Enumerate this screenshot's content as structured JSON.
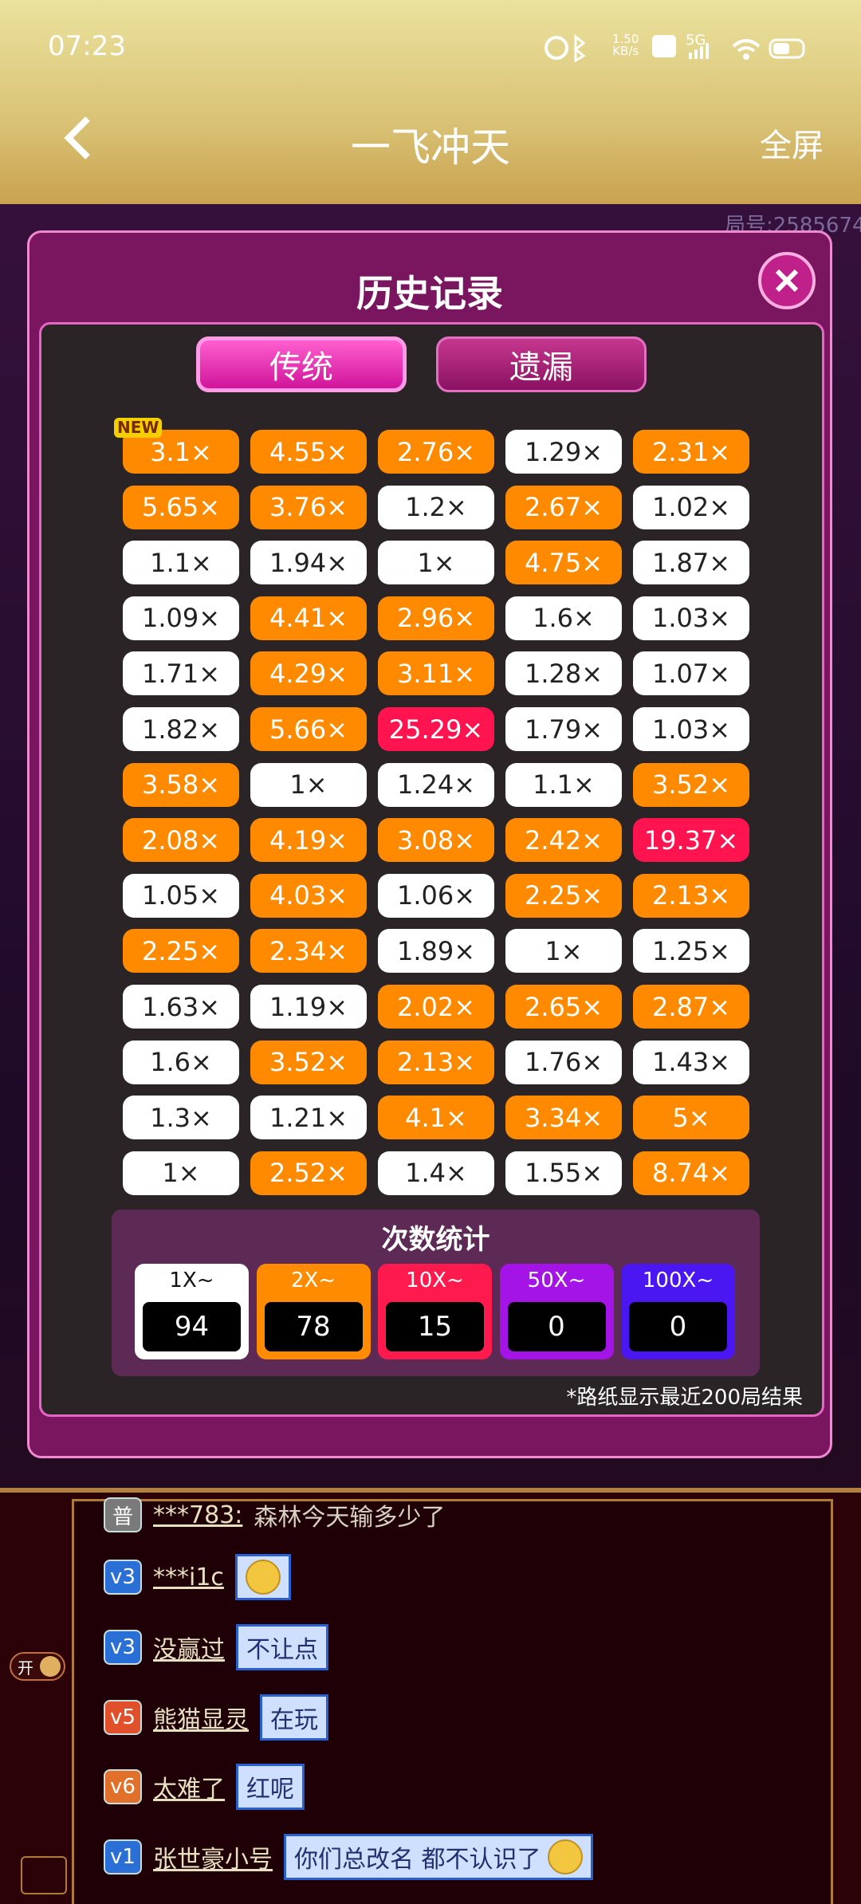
{
  "status_bar": {
    "time": "07:23",
    "speed": "1.50",
    "speed_unit": "KB/s",
    "network": "5G"
  },
  "header": {
    "title": "一飞冲天",
    "action": "全屏"
  },
  "background": {
    "room_id": "局号:2585674"
  },
  "modal": {
    "title": "历史记录",
    "tabs": [
      "传统",
      "遗漏"
    ],
    "new_badge": "NEW",
    "grid": [
      [
        {
          "text": "3.1×",
          "style": "orange"
        },
        {
          "text": "4.55×",
          "style": "orange"
        },
        {
          "text": "2.76×",
          "style": "orange"
        },
        {
          "text": "1.29×",
          "style": "white"
        },
        {
          "text": "2.31×",
          "style": "orange"
        }
      ],
      [
        {
          "text": "5.65×",
          "style": "orange"
        },
        {
          "text": "3.76×",
          "style": "orange"
        },
        {
          "text": "1.2×",
          "style": "white"
        },
        {
          "text": "2.67×",
          "style": "orange"
        },
        {
          "text": "1.02×",
          "style": "white"
        }
      ],
      [
        {
          "text": "1.1×",
          "style": "white"
        },
        {
          "text": "1.94×",
          "style": "white"
        },
        {
          "text": "1×",
          "style": "white"
        },
        {
          "text": "4.75×",
          "style": "orange"
        },
        {
          "text": "1.87×",
          "style": "white"
        }
      ],
      [
        {
          "text": "1.09×",
          "style": "white"
        },
        {
          "text": "4.41×",
          "style": "orange"
        },
        {
          "text": "2.96×",
          "style": "orange"
        },
        {
          "text": "1.6×",
          "style": "white"
        },
        {
          "text": "1.03×",
          "style": "white"
        }
      ],
      [
        {
          "text": "1.71×",
          "style": "white"
        },
        {
          "text": "4.29×",
          "style": "orange"
        },
        {
          "text": "3.11×",
          "style": "orange"
        },
        {
          "text": "1.28×",
          "style": "white"
        },
        {
          "text": "1.07×",
          "style": "white"
        }
      ],
      [
        {
          "text": "1.82×",
          "style": "white"
        },
        {
          "text": "5.66×",
          "style": "orange"
        },
        {
          "text": "25.29×",
          "style": "red"
        },
        {
          "text": "1.79×",
          "style": "white"
        },
        {
          "text": "1.03×",
          "style": "white"
        }
      ],
      [
        {
          "text": "3.58×",
          "style": "orange"
        },
        {
          "text": "1×",
          "style": "white"
        },
        {
          "text": "1.24×",
          "style": "white"
        },
        {
          "text": "1.1×",
          "style": "white"
        },
        {
          "text": "3.52×",
          "style": "orange"
        }
      ],
      [
        {
          "text": "2.08×",
          "style": "orange"
        },
        {
          "text": "4.19×",
          "style": "orange"
        },
        {
          "text": "3.08×",
          "style": "orange"
        },
        {
          "text": "2.42×",
          "style": "orange"
        },
        {
          "text": "19.37×",
          "style": "red"
        }
      ],
      [
        {
          "text": "1.05×",
          "style": "white"
        },
        {
          "text": "4.03×",
          "style": "orange"
        },
        {
          "text": "1.06×",
          "style": "white"
        },
        {
          "text": "2.25×",
          "style": "orange"
        },
        {
          "text": "2.13×",
          "style": "orange"
        }
      ],
      [
        {
          "text": "2.25×",
          "style": "orange"
        },
        {
          "text": "2.34×",
          "style": "orange"
        },
        {
          "text": "1.89×",
          "style": "white"
        },
        {
          "text": "1×",
          "style": "white"
        },
        {
          "text": "1.25×",
          "style": "white"
        }
      ],
      [
        {
          "text": "1.63×",
          "style": "white"
        },
        {
          "text": "1.19×",
          "style": "white"
        },
        {
          "text": "2.02×",
          "style": "orange"
        },
        {
          "text": "2.65×",
          "style": "orange"
        },
        {
          "text": "2.87×",
          "style": "orange"
        }
      ],
      [
        {
          "text": "1.6×",
          "style": "white"
        },
        {
          "text": "3.52×",
          "style": "orange"
        },
        {
          "text": "2.13×",
          "style": "orange"
        },
        {
          "text": "1.76×",
          "style": "white"
        },
        {
          "text": "1.43×",
          "style": "white"
        }
      ],
      [
        {
          "text": "1.3×",
          "style": "white"
        },
        {
          "text": "1.21×",
          "style": "white"
        },
        {
          "text": "4.1×",
          "style": "orange"
        },
        {
          "text": "3.34×",
          "style": "orange"
        },
        {
          "text": "5×",
          "style": "orange"
        }
      ],
      [
        {
          "text": "1×",
          "style": "white"
        },
        {
          "text": "2.52×",
          "style": "orange"
        },
        {
          "text": "1.4×",
          "style": "white"
        },
        {
          "text": "1.55×",
          "style": "white"
        },
        {
          "text": "8.74×",
          "style": "orange"
        }
      ]
    ],
    "stats": {
      "title": "次数统计",
      "items": [
        {
          "label": "1X~",
          "count": 94,
          "color": "#ffffff",
          "text_color": "#111111"
        },
        {
          "label": "2X~",
          "count": 78,
          "color": "#ff8c00",
          "text_color": "#ffffff"
        },
        {
          "label": "10X~",
          "count": 15,
          "color": "#ff1a4e",
          "text_color": "#ffffff"
        },
        {
          "label": "50X~",
          "count": 0,
          "color": "#a414e6",
          "text_color": "#ffffff"
        },
        {
          "label": "100X~",
          "count": 0,
          "color": "#4a16f2",
          "text_color": "#ffffff"
        }
      ]
    },
    "footnote": "*路纸显示最近200局结果"
  },
  "chat": {
    "toggle": "开",
    "messages": [
      {
        "level": "普",
        "badge_color": "#7a7a7a",
        "name": "***783:",
        "text": "森林今天输多少了",
        "plain": true
      },
      {
        "level": "v3",
        "badge_color": "#2a6fd6",
        "name": "***i1c",
        "emoji": true
      },
      {
        "level": "v3",
        "badge_color": "#2a6fd6",
        "name": "没赢过",
        "text": "不让点"
      },
      {
        "level": "v5",
        "badge_color": "#e0502a",
        "name": "熊猫显灵",
        "text": "在玩"
      },
      {
        "level": "v6",
        "badge_color": "#e0702a",
        "name": "太难了",
        "text": "红呢"
      },
      {
        "level": "v1",
        "badge_color": "#2a6fd6",
        "name": "张世豪小号",
        "text": "你们总改名  都不认识了",
        "emoji": true
      }
    ]
  }
}
